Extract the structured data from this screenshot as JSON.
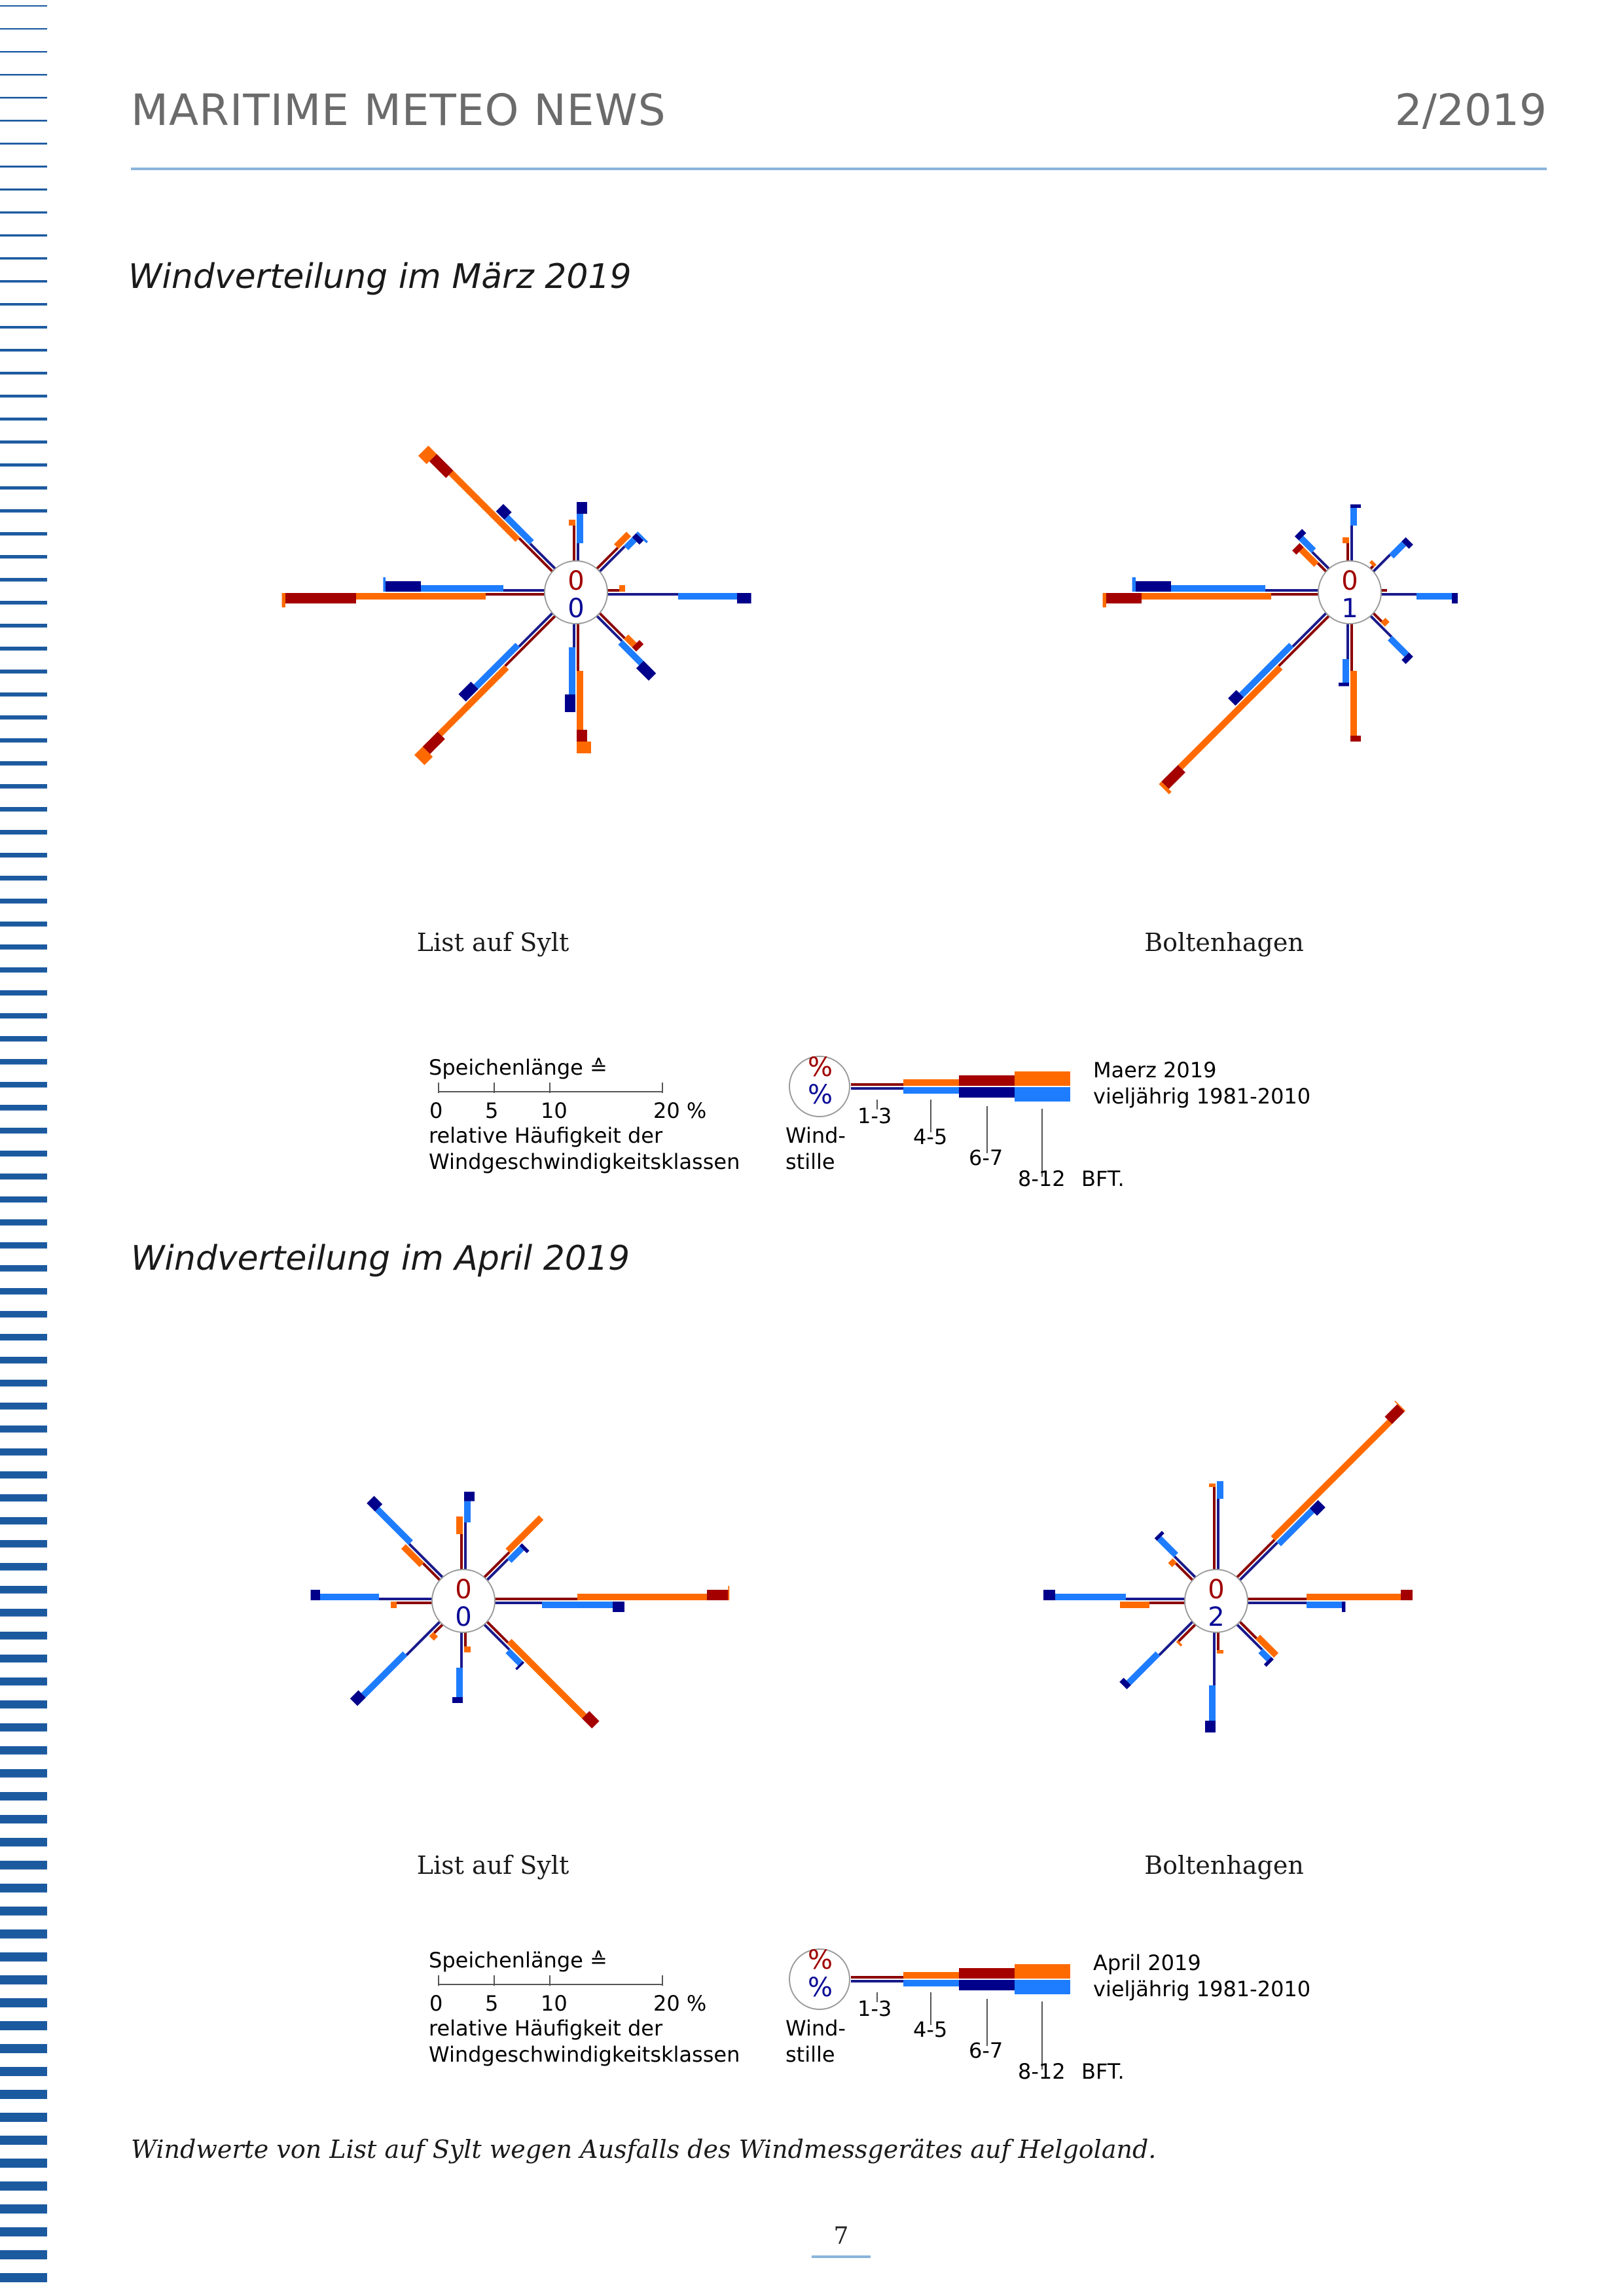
{
  "header": {
    "title": "MARITIME METEO NEWS",
    "issue": "2/2019"
  },
  "colors": {
    "accent_line": "#8ab4dc",
    "stripe": "#1c5aa0",
    "current_1_3": "#8b0000",
    "current_4_5": "#ff6a00",
    "current_6_7": "#a50000",
    "current_8_12": "#ff6a00",
    "lt_1_3": "#1a1a8c",
    "lt_4_5": "#1e7cff",
    "lt_6_7": "#00008b",
    "lt_8_12": "#1e7cff",
    "current": "#a00000",
    "current_orange": "#ff6a00",
    "longterm_dark": "#0a0a96",
    "longterm_light": "#1e78ff"
  },
  "sections": [
    {
      "title": "Windverteilung im März 2019",
      "roses": [
        {
          "station": "List auf Sylt",
          "calm_current": "0",
          "calm_longterm": "0"
        },
        {
          "station": "Boltenhagen",
          "calm_current": "0",
          "calm_longterm": "1"
        }
      ],
      "legend": {
        "scale_title": "Speichenlänge ≙",
        "scale_ticks": [
          "0",
          "5",
          "10",
          "20 %"
        ],
        "scale_desc_1": "relative Häufigkeit der",
        "scale_desc_2": "Windgeschwindigkeitsklassen",
        "pct_top": "%",
        "pct_bottom": "%",
        "calm_1": "Wind-",
        "calm_2": "stille",
        "class_1": "1-3",
        "class_2": "4-5",
        "class_3": "6-7",
        "class_4": "8-12",
        "bft": "BFT.",
        "current_label": "Maerz 2019",
        "longterm_label": "vieljährig 1981-2010"
      }
    },
    {
      "title": "Windverteilung im April 2019",
      "roses": [
        {
          "station": "List auf Sylt",
          "calm_current": "0",
          "calm_longterm": "0"
        },
        {
          "station": "Boltenhagen",
          "calm_current": "0",
          "calm_longterm": "2"
        }
      ],
      "legend": {
        "scale_title": "Speichenlänge ≙",
        "scale_ticks": [
          "0",
          "5",
          "10",
          "20 %"
        ],
        "scale_desc_1": "relative Häufigkeit der",
        "scale_desc_2": "Windgeschwindigkeitsklassen",
        "pct_top": "%",
        "pct_bottom": "%",
        "calm_1": "Wind-",
        "calm_2": "stille",
        "class_1": "1-3",
        "class_2": "4-5",
        "class_3": "6-7",
        "class_4": "8-12",
        "bft": "BFT.",
        "current_label": "April 2019",
        "longterm_label": "vieljährig 1981-2010"
      }
    }
  ],
  "footnote": "Windwerte von List auf Sylt wegen Ausfalls des Windmessgerätes auf Helgoland.",
  "page_number": "7",
  "chart_data": [
    {
      "type": "wind_rose",
      "title": "List auf Sylt — März 2019",
      "units": "% relative frequency (estimated)",
      "directions_deg": [
        0,
        45,
        90,
        135,
        180,
        225,
        270,
        315
      ],
      "current": [
        [
          3,
          0.5,
          0,
          0
        ],
        [
          2.5,
          1.5,
          0,
          0
        ],
        [
          1,
          0.5,
          0,
          0
        ],
        [
          3,
          1,
          0.5,
          0
        ],
        [
          4,
          5,
          1,
          1
        ],
        [
          6,
          8,
          1.8,
          1
        ],
        [
          5,
          11,
          6,
          0.3
        ],
        [
          4,
          8,
          2,
          1
        ]
      ],
      "longterm": [
        [
          1.5,
          2.5,
          1,
          0
        ],
        [
          3,
          1,
          0.5,
          0.2
        ],
        [
          6,
          5,
          1.2,
          0
        ],
        [
          3,
          2.5,
          1.5,
          0
        ],
        [
          2,
          4,
          1.5,
          0
        ],
        [
          4,
          5,
          1.5,
          0
        ],
        [
          3.5,
          7,
          3,
          0.2
        ],
        [
          3,
          3,
          1,
          0
        ]
      ]
    },
    {
      "type": "wind_rose",
      "title": "Boltenhagen — März 2019",
      "units": "% relative frequency (estimated)",
      "directions_deg": [
        0,
        45,
        90,
        135,
        180,
        225,
        270,
        315
      ],
      "current": [
        [
          1.5,
          0.5,
          0,
          0
        ],
        [
          0.3,
          0.3,
          0,
          0
        ],
        [
          0.5,
          0,
          0,
          0
        ],
        [
          1,
          0.5,
          0,
          0
        ],
        [
          4,
          5.5,
          0.5,
          0
        ],
        [
          6,
          12,
          2,
          0.3
        ],
        [
          4,
          11,
          3,
          0.3
        ],
        [
          1,
          1.8,
          0.5,
          0
        ]
      ],
      "longterm": [
        [
          3,
          1.5,
          0.3,
          0
        ],
        [
          2,
          1.5,
          0.5,
          0
        ],
        [
          3,
          3,
          0.5,
          0
        ],
        [
          2.5,
          2,
          0.5,
          0
        ],
        [
          3,
          2,
          0.3,
          0
        ],
        [
          4,
          6,
          1,
          0
        ],
        [
          4.5,
          8,
          3,
          0.3
        ],
        [
          2,
          1.5,
          0.5,
          0
        ]
      ]
    },
    {
      "type": "wind_rose",
      "title": "List auf Sylt — April 2019",
      "units": "% relative frequency (estimated)",
      "directions_deg": [
        0,
        45,
        90,
        135,
        180,
        225,
        270,
        315
      ],
      "current": [
        [
          3,
          1.5,
          0,
          0
        ],
        [
          3,
          4,
          0,
          0
        ],
        [
          7,
          11,
          1.8,
          0.1
        ],
        [
          2.5,
          9,
          1.2,
          0
        ],
        [
          1.2,
          0.5,
          0,
          0
        ],
        [
          1,
          0.5,
          0,
          0
        ],
        [
          3,
          0.5,
          0,
          0
        ],
        [
          2,
          2.2,
          0,
          0
        ]
      ],
      "longterm": [
        [
          4,
          1.8,
          0.8,
          0
        ],
        [
          2.5,
          1.5,
          0.3,
          0
        ],
        [
          4,
          6,
          1,
          0
        ],
        [
          3,
          1.5,
          0.2,
          0
        ],
        [
          3,
          2.5,
          0.5,
          0
        ],
        [
          4,
          5,
          1,
          0
        ],
        [
          4.5,
          5,
          0.8,
          0
        ],
        [
          4,
          4,
          1,
          0
        ]
      ]
    },
    {
      "type": "wind_rose",
      "title": "Boltenhagen — April 2019",
      "units": "% relative frequency (estimated)",
      "directions_deg": [
        0,
        45,
        90,
        135,
        180,
        225,
        270,
        315
      ],
      "current": [
        [
          7,
          0.3,
          0,
          0
        ],
        [
          4.5,
          14,
          1.5,
          0.1
        ],
        [
          5,
          8,
          1,
          0
        ],
        [
          2,
          2.2,
          0,
          0
        ],
        [
          1.5,
          0.3,
          0,
          0
        ],
        [
          2,
          0.2,
          0,
          0
        ],
        [
          3,
          2.5,
          0,
          0
        ],
        [
          2,
          0.5,
          0,
          0
        ]
      ],
      "longterm": [
        [
          6,
          1.5,
          0,
          0
        ],
        [
          4.5,
          4,
          1,
          0
        ],
        [
          5,
          3,
          0.3,
          0
        ],
        [
          3,
          1,
          0.3,
          0
        ],
        [
          4.5,
          3,
          1,
          0
        ],
        [
          4,
          3.5,
          0.5,
          0
        ],
        [
          5,
          6,
          1,
          0
        ],
        [
          2.5,
          2,
          0.3,
          0
        ]
      ]
    }
  ]
}
